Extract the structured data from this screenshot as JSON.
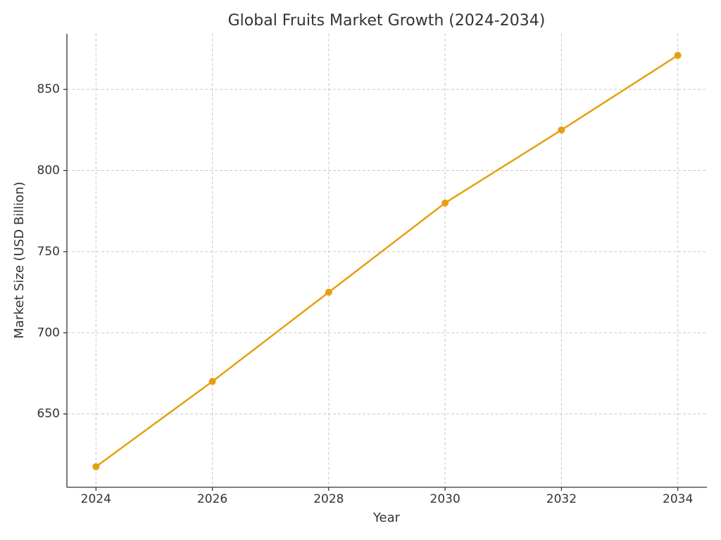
{
  "chart_data": {
    "type": "line",
    "title": "Global Fruits Market Growth (2024-2034)",
    "x_label": "Year",
    "y_label": "Market Size (USD Billion)",
    "x": [
      2024,
      2026,
      2028,
      2030,
      2032,
      2034
    ],
    "values": [
      617.5,
      670,
      725,
      780,
      825,
      871
    ],
    "color": "#e6a00e",
    "xlim": [
      2023.5,
      2034.5
    ],
    "xticks": [
      2024,
      2026,
      2028,
      2030,
      2032,
      2034
    ],
    "ylim": [
      604.8,
      884.3
    ],
    "yticks": [
      650,
      700,
      750,
      800,
      850
    ],
    "grid": true
  }
}
